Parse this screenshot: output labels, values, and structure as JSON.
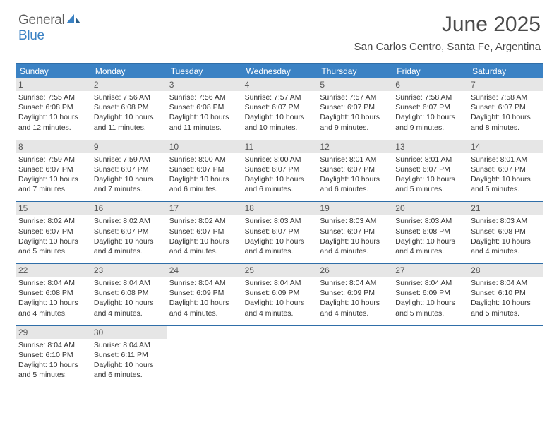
{
  "brand": {
    "text1": "General",
    "text2": "Blue"
  },
  "title": "June 2025",
  "location": "San Carlos Centro, Santa Fe, Argentina",
  "colors": {
    "header_bg": "#3b82c4",
    "border": "#2f6ea8",
    "daynum_bg": "#e6e6e6",
    "text": "#333333",
    "brand_gray": "#5a5a5a",
    "brand_blue": "#3b82c4"
  },
  "day_names": [
    "Sunday",
    "Monday",
    "Tuesday",
    "Wednesday",
    "Thursday",
    "Friday",
    "Saturday"
  ],
  "weeks": [
    [
      {
        "n": "1",
        "sr": "Sunrise: 7:55 AM",
        "ss": "Sunset: 6:08 PM",
        "dl": "Daylight: 10 hours and 12 minutes."
      },
      {
        "n": "2",
        "sr": "Sunrise: 7:56 AM",
        "ss": "Sunset: 6:08 PM",
        "dl": "Daylight: 10 hours and 11 minutes."
      },
      {
        "n": "3",
        "sr": "Sunrise: 7:56 AM",
        "ss": "Sunset: 6:08 PM",
        "dl": "Daylight: 10 hours and 11 minutes."
      },
      {
        "n": "4",
        "sr": "Sunrise: 7:57 AM",
        "ss": "Sunset: 6:07 PM",
        "dl": "Daylight: 10 hours and 10 minutes."
      },
      {
        "n": "5",
        "sr": "Sunrise: 7:57 AM",
        "ss": "Sunset: 6:07 PM",
        "dl": "Daylight: 10 hours and 9 minutes."
      },
      {
        "n": "6",
        "sr": "Sunrise: 7:58 AM",
        "ss": "Sunset: 6:07 PM",
        "dl": "Daylight: 10 hours and 9 minutes."
      },
      {
        "n": "7",
        "sr": "Sunrise: 7:58 AM",
        "ss": "Sunset: 6:07 PM",
        "dl": "Daylight: 10 hours and 8 minutes."
      }
    ],
    [
      {
        "n": "8",
        "sr": "Sunrise: 7:59 AM",
        "ss": "Sunset: 6:07 PM",
        "dl": "Daylight: 10 hours and 7 minutes."
      },
      {
        "n": "9",
        "sr": "Sunrise: 7:59 AM",
        "ss": "Sunset: 6:07 PM",
        "dl": "Daylight: 10 hours and 7 minutes."
      },
      {
        "n": "10",
        "sr": "Sunrise: 8:00 AM",
        "ss": "Sunset: 6:07 PM",
        "dl": "Daylight: 10 hours and 6 minutes."
      },
      {
        "n": "11",
        "sr": "Sunrise: 8:00 AM",
        "ss": "Sunset: 6:07 PM",
        "dl": "Daylight: 10 hours and 6 minutes."
      },
      {
        "n": "12",
        "sr": "Sunrise: 8:01 AM",
        "ss": "Sunset: 6:07 PM",
        "dl": "Daylight: 10 hours and 6 minutes."
      },
      {
        "n": "13",
        "sr": "Sunrise: 8:01 AM",
        "ss": "Sunset: 6:07 PM",
        "dl": "Daylight: 10 hours and 5 minutes."
      },
      {
        "n": "14",
        "sr": "Sunrise: 8:01 AM",
        "ss": "Sunset: 6:07 PM",
        "dl": "Daylight: 10 hours and 5 minutes."
      }
    ],
    [
      {
        "n": "15",
        "sr": "Sunrise: 8:02 AM",
        "ss": "Sunset: 6:07 PM",
        "dl": "Daylight: 10 hours and 5 minutes."
      },
      {
        "n": "16",
        "sr": "Sunrise: 8:02 AM",
        "ss": "Sunset: 6:07 PM",
        "dl": "Daylight: 10 hours and 4 minutes."
      },
      {
        "n": "17",
        "sr": "Sunrise: 8:02 AM",
        "ss": "Sunset: 6:07 PM",
        "dl": "Daylight: 10 hours and 4 minutes."
      },
      {
        "n": "18",
        "sr": "Sunrise: 8:03 AM",
        "ss": "Sunset: 6:07 PM",
        "dl": "Daylight: 10 hours and 4 minutes."
      },
      {
        "n": "19",
        "sr": "Sunrise: 8:03 AM",
        "ss": "Sunset: 6:07 PM",
        "dl": "Daylight: 10 hours and 4 minutes."
      },
      {
        "n": "20",
        "sr": "Sunrise: 8:03 AM",
        "ss": "Sunset: 6:08 PM",
        "dl": "Daylight: 10 hours and 4 minutes."
      },
      {
        "n": "21",
        "sr": "Sunrise: 8:03 AM",
        "ss": "Sunset: 6:08 PM",
        "dl": "Daylight: 10 hours and 4 minutes."
      }
    ],
    [
      {
        "n": "22",
        "sr": "Sunrise: 8:04 AM",
        "ss": "Sunset: 6:08 PM",
        "dl": "Daylight: 10 hours and 4 minutes."
      },
      {
        "n": "23",
        "sr": "Sunrise: 8:04 AM",
        "ss": "Sunset: 6:08 PM",
        "dl": "Daylight: 10 hours and 4 minutes."
      },
      {
        "n": "24",
        "sr": "Sunrise: 8:04 AM",
        "ss": "Sunset: 6:09 PM",
        "dl": "Daylight: 10 hours and 4 minutes."
      },
      {
        "n": "25",
        "sr": "Sunrise: 8:04 AM",
        "ss": "Sunset: 6:09 PM",
        "dl": "Daylight: 10 hours and 4 minutes."
      },
      {
        "n": "26",
        "sr": "Sunrise: 8:04 AM",
        "ss": "Sunset: 6:09 PM",
        "dl": "Daylight: 10 hours and 4 minutes."
      },
      {
        "n": "27",
        "sr": "Sunrise: 8:04 AM",
        "ss": "Sunset: 6:09 PM",
        "dl": "Daylight: 10 hours and 5 minutes."
      },
      {
        "n": "28",
        "sr": "Sunrise: 8:04 AM",
        "ss": "Sunset: 6:10 PM",
        "dl": "Daylight: 10 hours and 5 minutes."
      }
    ],
    [
      {
        "n": "29",
        "sr": "Sunrise: 8:04 AM",
        "ss": "Sunset: 6:10 PM",
        "dl": "Daylight: 10 hours and 5 minutes."
      },
      {
        "n": "30",
        "sr": "Sunrise: 8:04 AM",
        "ss": "Sunset: 6:11 PM",
        "dl": "Daylight: 10 hours and 6 minutes."
      },
      null,
      null,
      null,
      null,
      null
    ]
  ]
}
